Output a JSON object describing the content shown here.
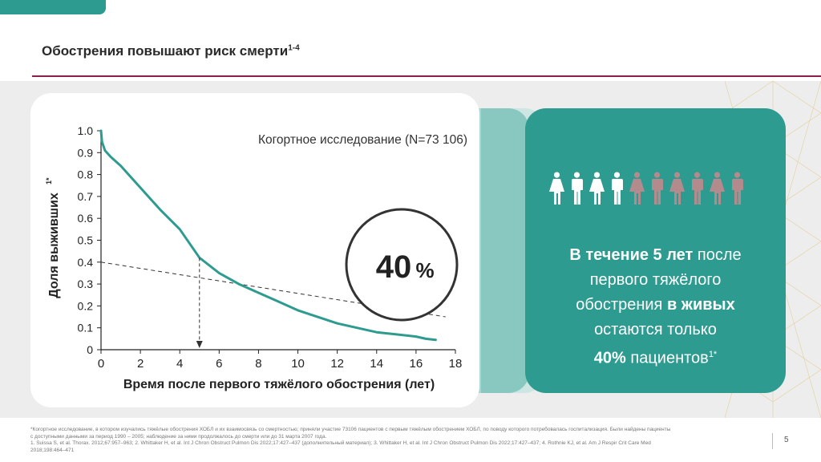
{
  "slide": {
    "title": "Обострения повышают риск смерти",
    "title_sup": "1-4",
    "page_number": "5"
  },
  "chart_data": {
    "type": "line",
    "title": "Когортное исследование (N=73 106)",
    "xlabel": "Время после первого тяжёлого обострения (лет)",
    "ylabel": "Доля выживших",
    "ylabel_sup": "1*",
    "xlim": [
      0,
      18
    ],
    "ylim": [
      0,
      1
    ],
    "x_ticks": [
      "0",
      "2",
      "4",
      "6",
      "8",
      "10",
      "12",
      "14",
      "16",
      "18"
    ],
    "y_ticks": [
      "0",
      "0.1",
      "0.2",
      "0.3",
      "0.4",
      "0.5",
      "0.6",
      "0.7",
      "0.8",
      "0.9",
      "1.0"
    ],
    "series": [
      {
        "color": "#2e9b90",
        "x": [
          0,
          0.05,
          0.2,
          0.5,
          1,
          2,
          3,
          4,
          5,
          6,
          7,
          8,
          9,
          10,
          11,
          12,
          13,
          14,
          15,
          16,
          16.5,
          17
        ],
        "y": [
          1.0,
          0.95,
          0.91,
          0.88,
          0.84,
          0.74,
          0.64,
          0.55,
          0.42,
          0.35,
          0.3,
          0.26,
          0.22,
          0.18,
          0.15,
          0.12,
          0.1,
          0.08,
          0.07,
          0.06,
          0.05,
          0.045
        ]
      }
    ],
    "trend_line": {
      "x": [
        0,
        17.5
      ],
      "y": [
        0.4,
        0.15
      ]
    },
    "marker_x": 5,
    "marker_y_top": 0.42,
    "highlight_value": "40",
    "highlight_unit": "%"
  },
  "panel": {
    "icons_alive": 4,
    "icons_total": 10,
    "alive_color": "#ffffff",
    "dead_color": "#b48b8d",
    "line1_bold": "В течение 5 лет",
    "line1_rest": " после",
    "line2": "первого тяжёлого",
    "line3_start": "обострения ",
    "line3_bold": "в живых",
    "line4": "остаются только",
    "line5_bold": "40%",
    "line5_rest": " пациентов",
    "line5_sup": "1*"
  },
  "footnote": {
    "line1": "*Когортное исследование, в котором изучались тяжёлые обострения ХОБЛ и их взаимосвязь со смертностью; приняли участие 73106 пациентов с первым тяжёлым обострением ХОБЛ, по поводу которого потребовалась госпитализация. Были найдены пациенты",
    "line2": "с доступными данными за период 1990 – 2005; наблюдение за ними продолжалось до смерти или до 31 марта 2007 года.",
    "line3": "1. Suissa S, et al. Thorax. 2012;67:957–963; 2. Whittaker H, et al. Int J Chron Obstruct Pulmon Dis 2022;17:427–437 (дополнительный материал); 3. Whittaker H, et al. Int J Chron Obstruct Pulmon Dis 2022;17:427–437; 4. Rothnie KJ, et al. Am J Respir Crit Care Med",
    "line4": "2018;198:464–471"
  }
}
